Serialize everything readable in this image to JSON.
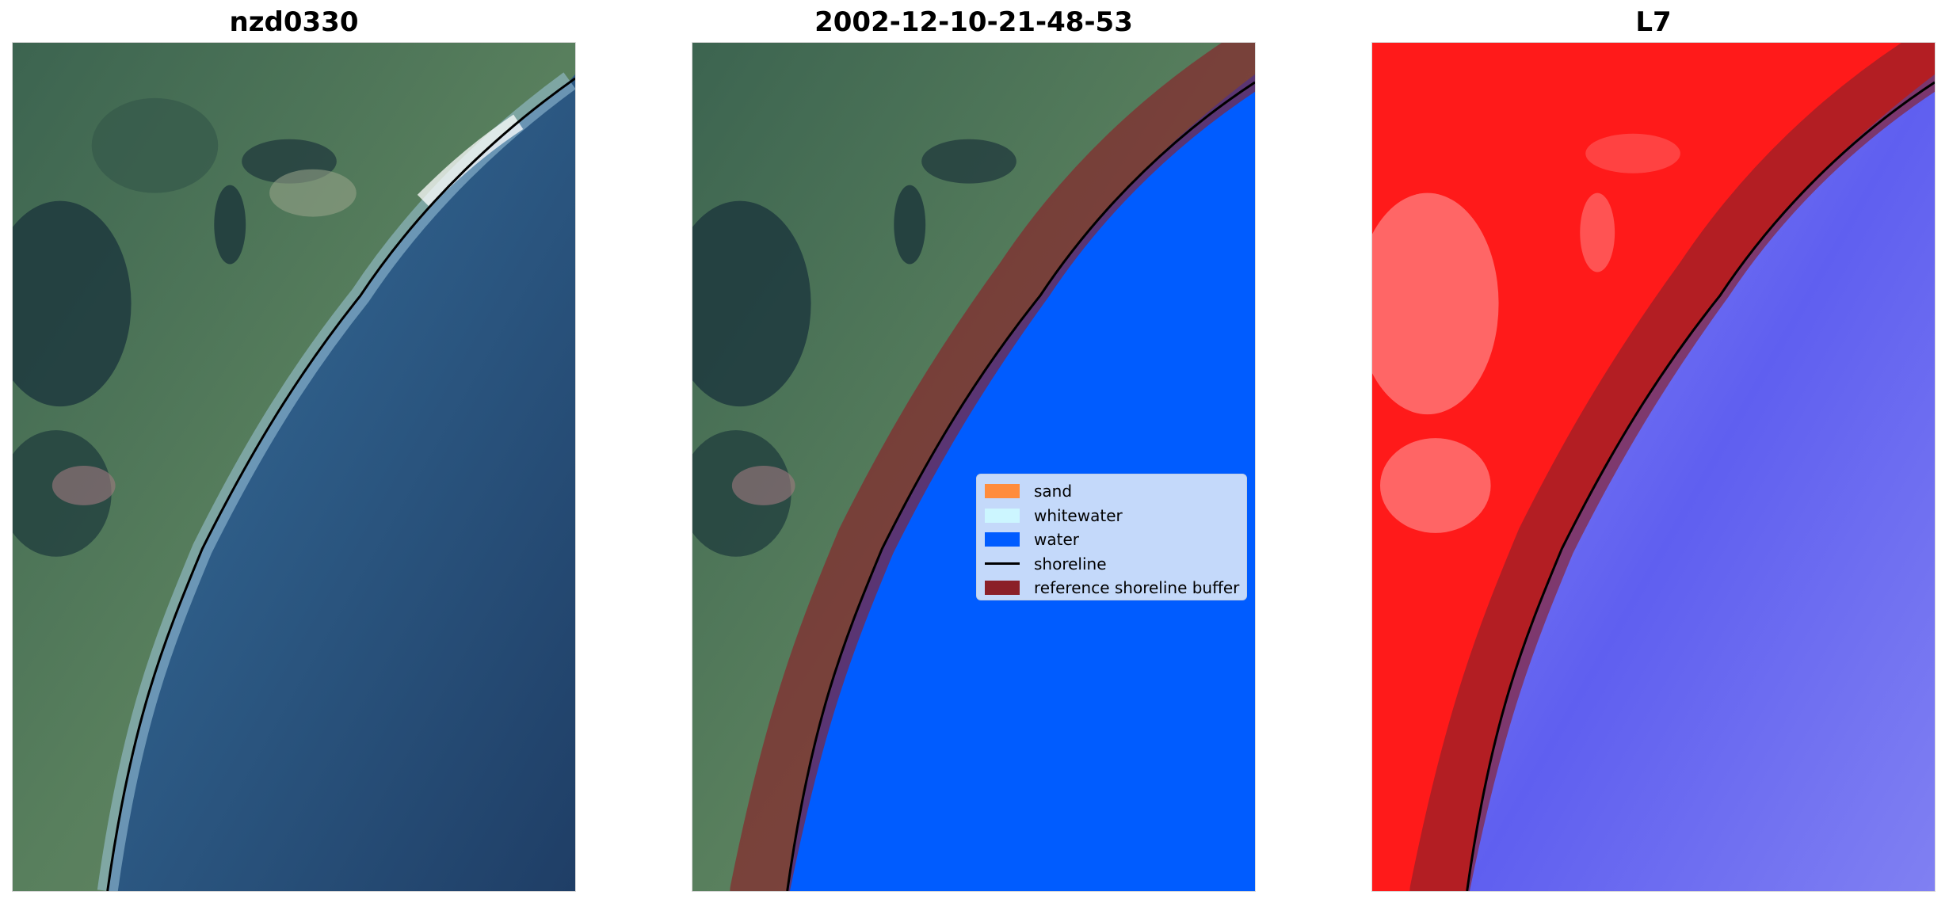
{
  "panels": [
    {
      "title": "nzd0330",
      "content": "satellite-rgb"
    },
    {
      "title": "2002-12-10-21-48-53",
      "content": "classified"
    },
    {
      "title": "L7",
      "content": "mndwi"
    }
  ],
  "legend": {
    "items": [
      {
        "label": "sand",
        "color": "#ff8c3c",
        "kind": "patch"
      },
      {
        "label": "whitewater",
        "color": "#ccf6ff",
        "kind": "patch"
      },
      {
        "label": "water",
        "color": "#005cff",
        "kind": "patch"
      },
      {
        "label": "shoreline",
        "color": "#000000",
        "kind": "line"
      },
      {
        "label": "reference shoreline buffer",
        "color": "#8b2028",
        "kind": "patch"
      }
    ]
  },
  "colors": {
    "land": "#4f7a5c",
    "sea": "#274a72",
    "classified_water": "#005cff",
    "buffer": "#8b2028",
    "index_land": "#ff1a1a",
    "index_water": "#6f6ff5"
  }
}
